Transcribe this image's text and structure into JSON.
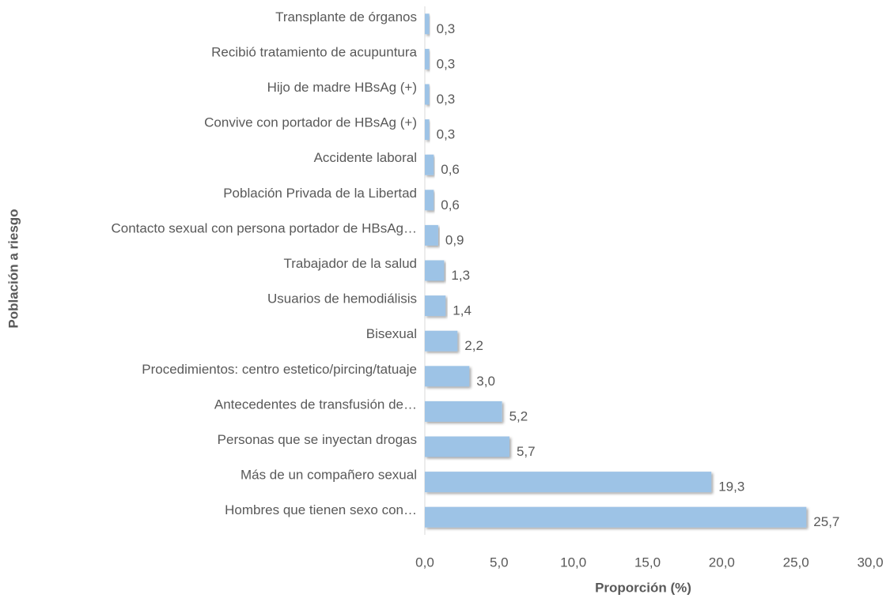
{
  "chart_data": {
    "type": "barh",
    "xlabel": "Proporción (%)",
    "ylabel": "Población a riesgo",
    "categories": [
      "Transplante de órganos",
      "Recibió tratamiento de acupuntura",
      "Hijo de madre HBsAg (+)",
      "Convive con portador de HBsAg (+)",
      "Accidente laboral",
      "Población Privada de la Libertad",
      "Contacto sexual con persona portador de HBsAg…",
      "Trabajador de la salud",
      "Usuarios de hemodiálisis",
      "Bisexual",
      "Procedimientos: centro estetico/pircing/tatuaje",
      "Antecedentes de transfusión de…",
      "Personas que se inyectan drogas",
      "Más de un compañero sexual",
      "Hombres que tienen sexo con…"
    ],
    "values": [
      0.3,
      0.3,
      0.3,
      0.3,
      0.6,
      0.6,
      0.9,
      1.3,
      1.4,
      2.2,
      3.0,
      5.2,
      5.7,
      19.3,
      25.7
    ],
    "value_labels": [
      "0,3",
      "0,3",
      "0,3",
      "0,3",
      "0,6",
      "0,6",
      "0,9",
      "1,3",
      "1,4",
      "2,2",
      "3,0",
      "5,2",
      "5,7",
      "19,3",
      "25,7"
    ],
    "color": "#9dc3e6",
    "xlim": [
      0,
      30
    ],
    "xticks": [
      {
        "value": 0,
        "label": "0,0"
      },
      {
        "value": 5,
        "label": "5,0"
      },
      {
        "value": 10,
        "label": "10,0"
      },
      {
        "value": 15,
        "label": "15,0"
      },
      {
        "value": 20,
        "label": "20,0"
      },
      {
        "value": 25,
        "label": "25,0"
      },
      {
        "value": 30,
        "label": "30,0"
      }
    ]
  }
}
